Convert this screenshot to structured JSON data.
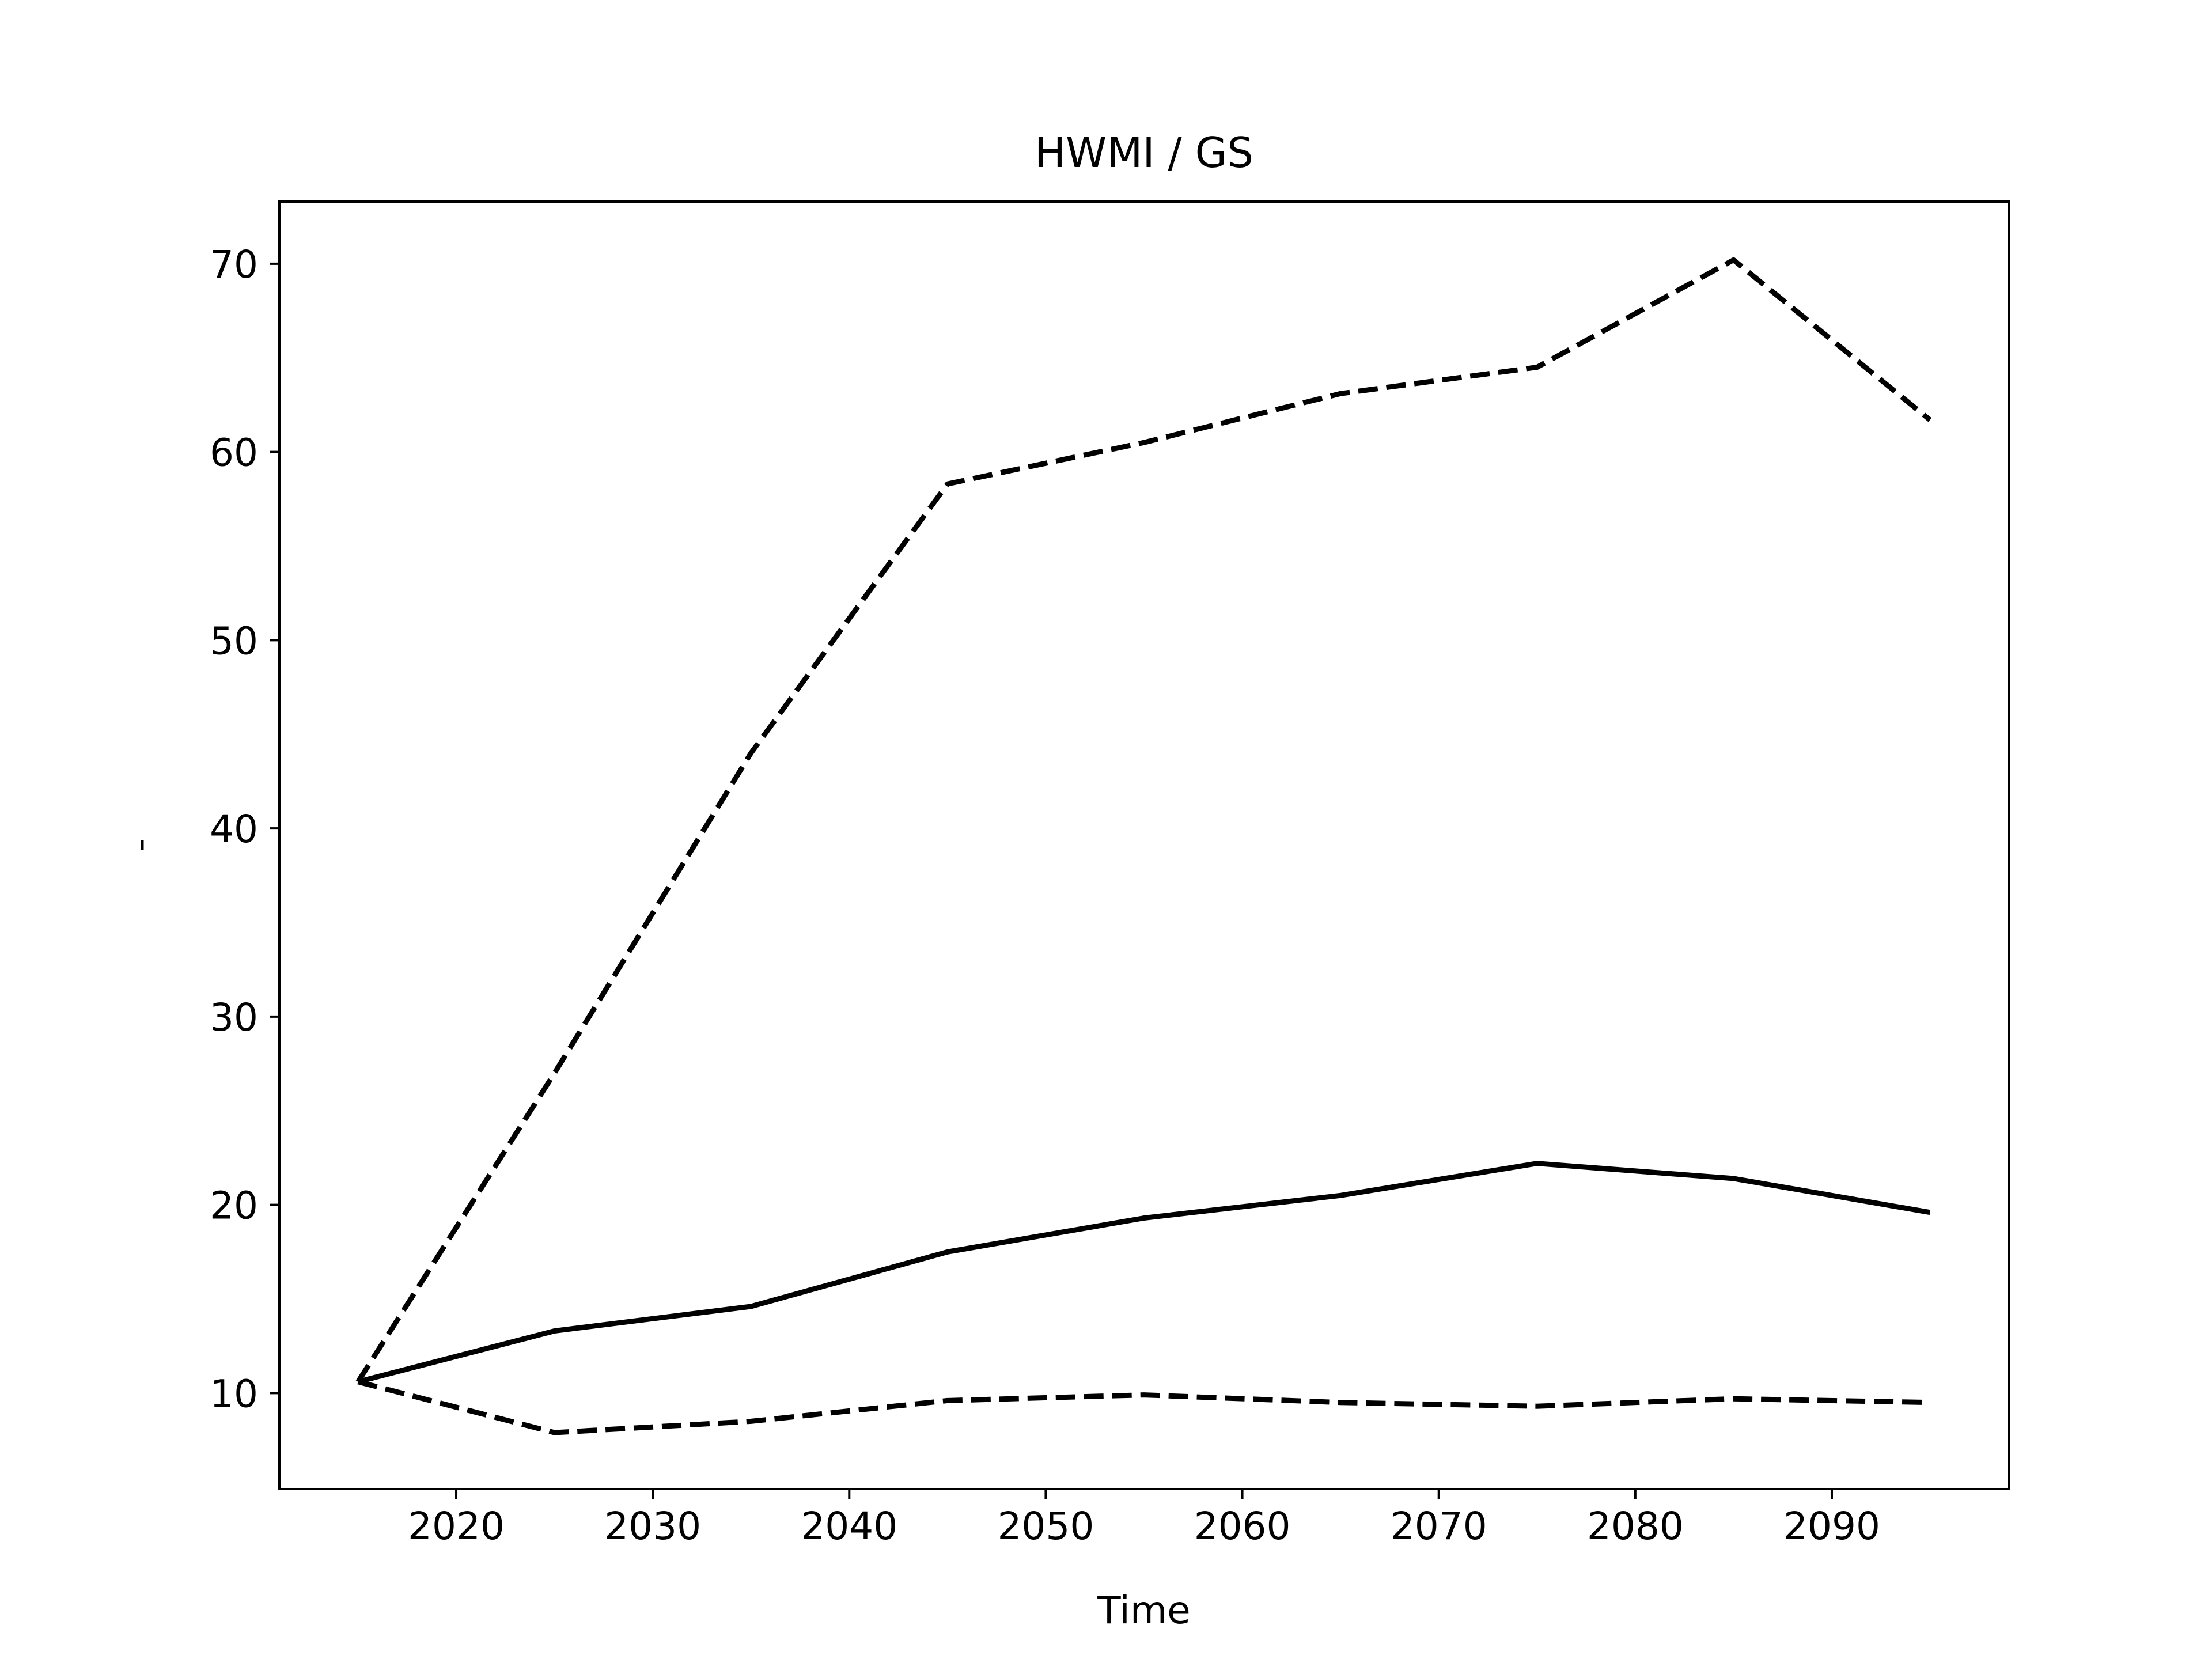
{
  "chart_data": {
    "type": "line",
    "title": "HWMI / GS",
    "xlabel": "Time",
    "ylabel": "-",
    "xlim": [
      2011,
      2099
    ],
    "ylim": [
      4.9,
      73.3
    ],
    "xticks": [
      2020,
      2030,
      2040,
      2050,
      2060,
      2070,
      2080,
      2090
    ],
    "yticks": [
      10,
      20,
      30,
      40,
      50,
      60,
      70
    ],
    "grid": false,
    "series": [
      {
        "style": "solid",
        "color": "#000000",
        "x": [
          2015,
          2025,
          2035,
          2045,
          2055,
          2065,
          2075,
          2085,
          2095
        ],
        "y": [
          10.6,
          13.3,
          14.6,
          17.5,
          19.3,
          20.5,
          22.2,
          21.4,
          19.6
        ]
      },
      {
        "style": "dashed",
        "color": "#000000",
        "x": [
          2015,
          2025,
          2035,
          2045,
          2055,
          2065,
          2075,
          2085,
          2095
        ],
        "y": [
          10.6,
          27.0,
          44.0,
          58.3,
          60.5,
          63.1,
          64.5,
          70.2,
          61.7
        ]
      },
      {
        "style": "dashed",
        "color": "#000000",
        "x": [
          2015,
          2025,
          2035,
          2045,
          2055,
          2065,
          2075,
          2085,
          2095
        ],
        "y": [
          10.6,
          7.9,
          8.5,
          9.6,
          9.9,
          9.5,
          9.3,
          9.7,
          9.5
        ]
      }
    ]
  }
}
